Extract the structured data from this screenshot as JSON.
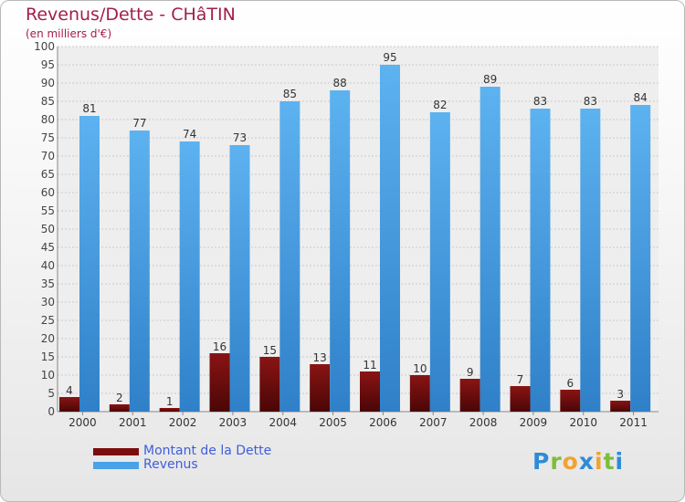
{
  "chart_data": {
    "type": "bar",
    "title": "Revenus/Dette - CHâTIN",
    "subtitle": "(en milliers d'€)",
    "categories": [
      "2000",
      "2001",
      "2002",
      "2003",
      "2004",
      "2005",
      "2006",
      "2007",
      "2008",
      "2009",
      "2010",
      "2011"
    ],
    "series": [
      {
        "name": "Montant de la Dette",
        "color": "#7a0d0d",
        "values": [
          4,
          2,
          1,
          16,
          15,
          13,
          11,
          10,
          9,
          7,
          6,
          3
        ]
      },
      {
        "name": "Revenus",
        "color": "#4aa3e8",
        "values": [
          81,
          77,
          74,
          73,
          85,
          88,
          95,
          82,
          89,
          83,
          83,
          84
        ]
      }
    ],
    "ylim": [
      0,
      100
    ],
    "ytick_step": 5,
    "grid": true,
    "legend": "bottom-left"
  },
  "logo": {
    "letters": [
      {
        "ch": "P",
        "color": "#2f8bd6"
      },
      {
        "ch": "r",
        "color": "#7dbd3b"
      },
      {
        "ch": "o",
        "color": "#f2a230"
      },
      {
        "ch": "x",
        "color": "#2f8bd6"
      },
      {
        "ch": "i",
        "color": "#f2a230"
      },
      {
        "ch": "t",
        "color": "#7dbd3b"
      },
      {
        "ch": "i",
        "color": "#2f8bd6"
      }
    ]
  }
}
